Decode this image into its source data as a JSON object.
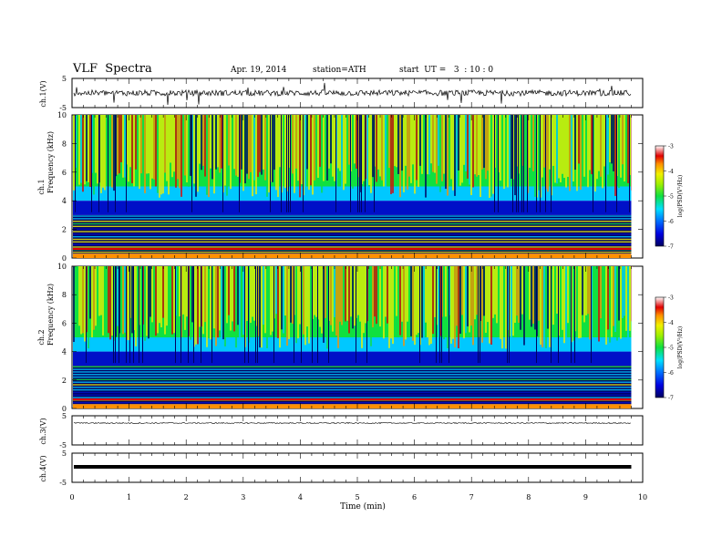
{
  "header": {
    "title": "VLF  Spectra",
    "date": "Apr. 19, 2014",
    "station": "station=ATH",
    "start": "start  UT =   3  : 10 : 0"
  },
  "colors": {
    "low": "#000060",
    "blue": "#0010c8",
    "cyan": "#00c8ff",
    "green": "#10e040",
    "yellow": "#f0f000",
    "orange": "#ff9000",
    "red": "#e00000",
    "pink": "#ffb0b0",
    "white": "#ffffff"
  },
  "chart_data": [
    {
      "type": "line",
      "name": "ch1-waveform",
      "ylabel": "ch.1(V)",
      "ylim": [
        -5,
        5
      ],
      "yticks": [
        "5",
        "-5"
      ],
      "baseline": 0,
      "description_values": "noisy waveform around 0 V with spikes reaching about ±5 V"
    },
    {
      "type": "heatmap",
      "name": "ch1-spectrogram",
      "ylabel": "ch.1\nFrequency  (kHz)",
      "ylabel_line1": "ch.1",
      "ylabel_line2": "Frequency  (kHz)",
      "ylim": [
        0,
        10
      ],
      "yticks": [
        "0",
        "2",
        "4",
        "6",
        "8",
        "10"
      ],
      "xlim": [
        0,
        10
      ],
      "data_end_min": 9.8,
      "colorbar": {
        "label": "log(PSD(V²/Hz)",
        "range": [
          -7,
          -3
        ],
        "ticks": [
          "-3",
          "-4",
          "-5",
          "-6",
          "-7"
        ]
      }
    },
    {
      "type": "heatmap",
      "name": "ch2-spectrogram",
      "ylabel_line1": "ch.2",
      "ylabel_line2": "Frequency  (kHz)",
      "ylim": [
        0,
        10
      ],
      "yticks": [
        "0",
        "2",
        "4",
        "6",
        "8",
        "10"
      ],
      "xlim": [
        0,
        10
      ],
      "data_end_min": 9.8,
      "colorbar": {
        "label": "log(PSD(V²/Hz)",
        "range": [
          -7,
          -3
        ],
        "ticks": [
          "-3",
          "-4",
          "-5",
          "-6",
          "-7"
        ]
      }
    },
    {
      "type": "line",
      "name": "ch3-waveform",
      "ylabel": "ch.3(V)",
      "ylim": [
        -5,
        5
      ],
      "yticks": [
        "5",
        "-5"
      ],
      "baseline": 2.5
    },
    {
      "type": "line",
      "name": "ch4-waveform",
      "ylabel": "ch.4(V)",
      "ylim": [
        -5,
        5
      ],
      "yticks": [
        "5",
        "-5"
      ],
      "baseline": 0
    }
  ],
  "xaxis": {
    "label": "Time  (min)",
    "ticks": [
      "0",
      "1",
      "2",
      "3",
      "4",
      "5",
      "6",
      "7",
      "8",
      "9",
      "10"
    ],
    "range": [
      0,
      10
    ]
  }
}
